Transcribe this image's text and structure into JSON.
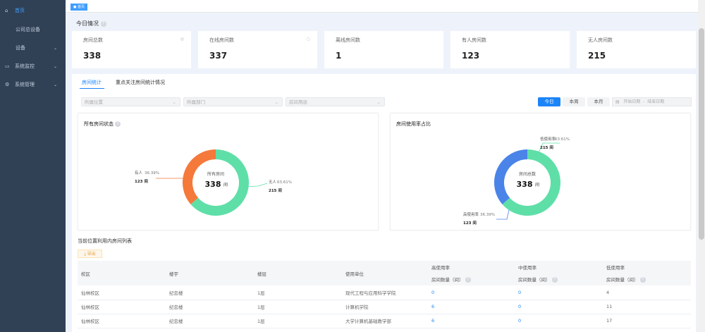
{
  "sidebar": {
    "items": [
      {
        "label": "首页",
        "icon": "home-icon"
      },
      {
        "label": "公司总设备"
      },
      {
        "label": "设备"
      },
      {
        "label": "系统监控",
        "icon": "monitor-icon"
      },
      {
        "label": "系统管理",
        "icon": "gear-icon"
      }
    ]
  },
  "breadcrumb": {
    "tag": "首页"
  },
  "today": {
    "title": "今日情况",
    "cards": [
      {
        "label": "房间总数",
        "value": "338"
      },
      {
        "label": "在线房间数",
        "value": "337"
      },
      {
        "label": "离线房间数",
        "value": "1"
      },
      {
        "label": "有人房间数",
        "value": "123"
      },
      {
        "label": "无人房间数",
        "value": "215"
      }
    ]
  },
  "tabs": [
    {
      "label": "房间统计",
      "active": true
    },
    {
      "label": "重点关注房间统计情况"
    }
  ],
  "filters": {
    "location": "所属位置",
    "department": "所属部门",
    "usage": "房间用途",
    "buttons": [
      "今日",
      "本周",
      "本月"
    ],
    "start": "开始日期",
    "sep": "-",
    "end": "结束日期"
  },
  "colors": {
    "primary": "#1c84f7",
    "green": "#5fdfa8",
    "orange": "#f5793b",
    "blue": "#4a84e8"
  },
  "chart_data": [
    {
      "type": "pie",
      "title": "所有房间状态",
      "center_label": "所有房间",
      "center_value": "338",
      "center_unit": "间",
      "slices": [
        {
          "name": "有人",
          "percent": "36.39%",
          "value": 123,
          "value_label": "123 间"
        },
        {
          "name": "无人",
          "percent": "63.61%",
          "value": 215,
          "value_label": "215 间"
        }
      ]
    },
    {
      "type": "pie",
      "title": "房间使用率占比",
      "center_label": "房间总数",
      "center_value": "338",
      "center_unit": "间",
      "slices": [
        {
          "name": "低使用率",
          "percent": "63.61%",
          "value": 215,
          "value_label": "215 间"
        },
        {
          "name": "高使用率",
          "percent": "36.39%",
          "value": 123,
          "value_label": "123 间"
        }
      ]
    }
  ],
  "list": {
    "title": "当前位置利用内房间列表",
    "export": "导出",
    "columns": [
      "校区",
      "楼宇",
      "楼层",
      "使用单位",
      "高使用率",
      "中使用率",
      "低使用率"
    ],
    "subcol": "房间数量（间）",
    "rows": [
      [
        "仙林校区",
        "纪忠楼",
        "1层",
        "现代工程与应用科学学院",
        "0",
        "0",
        "4"
      ],
      [
        "仙林校区",
        "纪忠楼",
        "1层",
        "计算机学院",
        "6",
        "0",
        "11"
      ],
      [
        "仙林校区",
        "纪忠楼",
        "1层",
        "大学计算机基础教学部",
        "6",
        "0",
        "17"
      ]
    ]
  }
}
